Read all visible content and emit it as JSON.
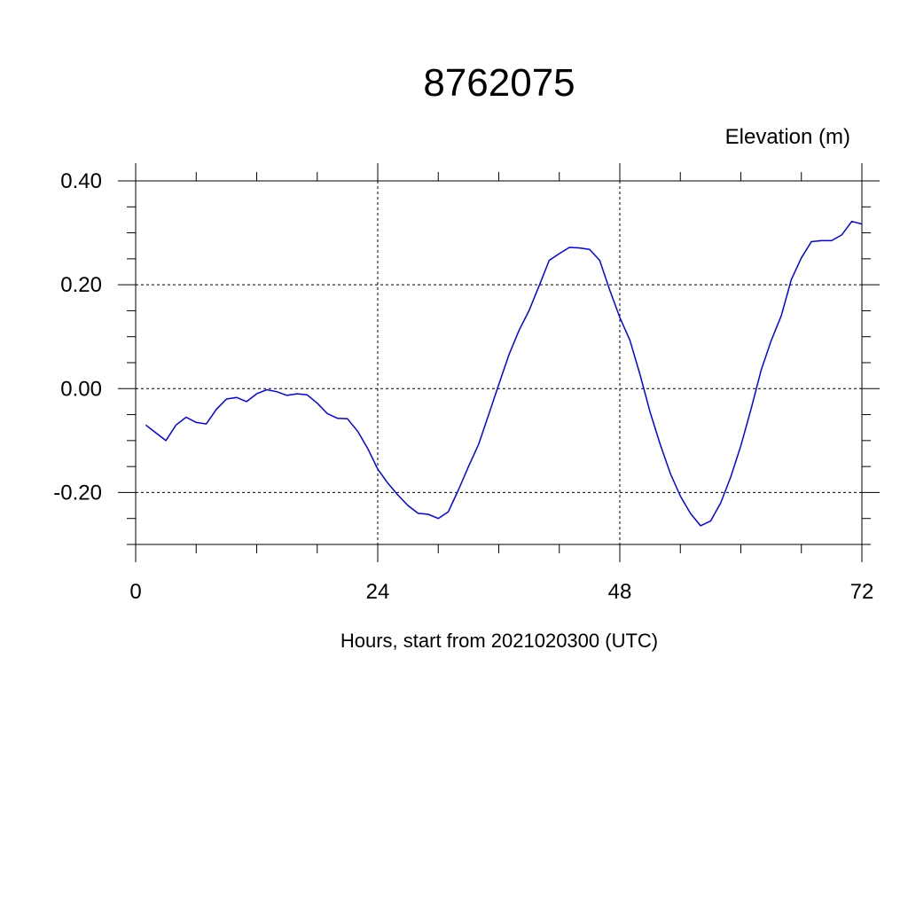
{
  "chart_data": {
    "type": "line",
    "title": "8762075",
    "ylabel": "Elevation (m)",
    "xlabel": "Hours, start from 2021020300 (UTC)",
    "xlim": [
      0,
      72
    ],
    "ylim": [
      -0.3,
      0.4
    ],
    "x_ticks": [
      0,
      24,
      48,
      72
    ],
    "x_tick_labels": [
      "0",
      "24",
      "48",
      "72"
    ],
    "y_ticks": [
      -0.2,
      0.0,
      0.2,
      0.4
    ],
    "y_tick_labels": [
      "-0.20",
      "0.00",
      "0.20",
      "0.40"
    ],
    "grid": true,
    "series": [
      {
        "color": "#0000ff",
        "x": [
          1,
          2,
          3,
          4,
          5,
          6,
          7,
          8,
          9,
          10,
          11,
          12,
          13,
          14,
          15,
          16,
          17,
          18,
          19,
          20,
          21,
          22,
          23,
          24,
          25,
          26,
          27,
          28,
          29,
          30,
          31,
          32,
          33,
          34,
          35,
          36,
          37,
          38,
          39,
          40,
          41,
          42,
          43,
          44,
          45,
          46,
          47,
          48,
          49,
          50,
          51,
          52,
          53,
          54,
          55,
          56,
          57,
          58,
          59,
          60,
          61,
          62,
          63,
          64,
          65,
          66,
          67,
          68,
          69,
          70,
          71,
          72
        ],
        "values": [
          -0.07,
          -0.085,
          -0.1,
          -0.07,
          -0.055,
          -0.065,
          -0.068,
          -0.04,
          -0.02,
          -0.017,
          -0.025,
          -0.01,
          -0.002,
          -0.006,
          -0.013,
          -0.01,
          -0.012,
          -0.028,
          -0.048,
          -0.057,
          -0.058,
          -0.082,
          -0.115,
          -0.155,
          -0.182,
          -0.205,
          -0.225,
          -0.24,
          -0.242,
          -0.25,
          -0.237,
          -0.195,
          -0.15,
          -0.107,
          -0.05,
          0.008,
          0.065,
          0.112,
          0.15,
          0.198,
          0.247,
          0.26,
          0.272,
          0.271,
          0.268,
          0.247,
          0.19,
          0.137,
          0.093,
          0.027,
          -0.045,
          -0.107,
          -0.163,
          -0.207,
          -0.24,
          -0.264,
          -0.255,
          -0.22,
          -0.17,
          -0.11,
          -0.04,
          0.035,
          0.092,
          0.14,
          0.21,
          0.252,
          0.283,
          0.285,
          0.285,
          0.296,
          0.322,
          0.317
        ]
      }
    ]
  }
}
